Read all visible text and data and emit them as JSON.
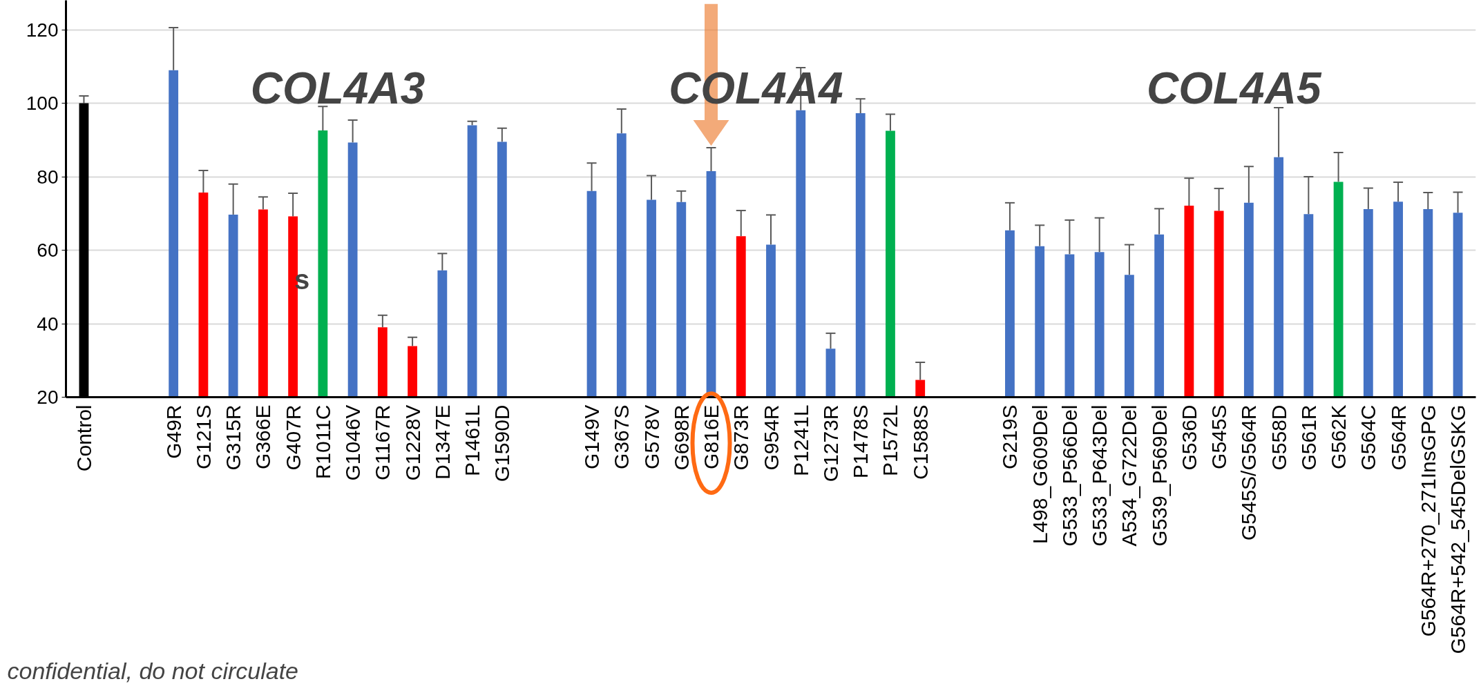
{
  "chart_data": {
    "type": "bar",
    "categories": [
      "Control",
      null,
      null,
      "G49R",
      "G121S",
      "G315R",
      "G366E",
      "G407R",
      "R1011C",
      "G1046V",
      "G1167R",
      "G1228V",
      "D1347E",
      "P1461L",
      "G1590D",
      null,
      null,
      "G149V",
      "G367S",
      "G578V",
      "G698R",
      "G816E",
      "G873R",
      "G954R",
      "P1241L",
      "G1273R",
      "P1478S",
      "P1572L",
      "C1588S",
      null,
      null,
      "G219S",
      "L498_G609Del",
      "G533_P566Del",
      "G533_P643Del",
      "A534_G722Del",
      "G539_P569Del",
      "G536D",
      "G545S",
      "G545S/G564R",
      "G558D",
      "G561R",
      "G562K",
      "G564C",
      "G564R",
      "G564R+270_271InsGPG",
      "G564R+542_545DelGSKG"
    ],
    "values": [
      100,
      null,
      null,
      109,
      75.7,
      69.7,
      71.1,
      69.2,
      92.6,
      89.3,
      39.0,
      33.9,
      54.5,
      94.0,
      89.5,
      null,
      null,
      76.1,
      91.8,
      73.7,
      73.1,
      81.5,
      63.8,
      61.5,
      98.1,
      33.2,
      97.3,
      92.5,
      24.7,
      null,
      null,
      65.4,
      61.1,
      58.9,
      59.5,
      53.3,
      64.3,
      72.1,
      70.7,
      72.9,
      85.3,
      69.8,
      78.6,
      71.2,
      73.2,
      71.2,
      70.2
    ],
    "errors": [
      [
        100,
        102
      ],
      null,
      null,
      [
        109,
        120.6
      ],
      [
        75.7,
        81.7
      ],
      [
        69.7,
        78
      ],
      [
        71.1,
        74.5
      ],
      [
        69.2,
        75.5
      ],
      [
        92.6,
        99.1
      ],
      [
        89.3,
        95.4
      ],
      [
        39.0,
        42.3
      ],
      [
        33.9,
        36.3
      ],
      [
        54.5,
        59.1
      ],
      [
        94.0,
        95.1
      ],
      [
        89.5,
        93.2
      ],
      null,
      null,
      [
        76.1,
        83.7
      ],
      [
        91.8,
        98.4
      ],
      [
        73.7,
        80.3
      ],
      [
        73.1,
        76.1
      ],
      [
        81.5,
        87.9
      ],
      [
        63.8,
        70.8
      ],
      [
        61.5,
        69.6
      ],
      [
        98.1,
        109.7
      ],
      [
        33.2,
        37.4
      ],
      [
        97.3,
        101.2
      ],
      [
        92.5,
        97.0
      ],
      [
        24.7,
        29.5
      ],
      null,
      null,
      [
        65.4,
        72.9
      ],
      [
        61.1,
        66.8
      ],
      [
        58.9,
        68.2
      ],
      [
        59.5,
        68.8
      ],
      [
        53.3,
        61.5
      ],
      [
        64.3,
        71.3
      ],
      [
        72.1,
        79.6
      ],
      [
        70.7,
        76.8
      ],
      [
        72.9,
        82.8
      ],
      [
        85.3,
        98.8
      ],
      [
        69.8,
        80.0
      ],
      [
        78.6,
        86.6
      ],
      [
        71.2,
        76.9
      ],
      [
        73.2,
        78.5
      ],
      [
        71.2,
        75.7
      ],
      [
        70.2,
        75.8
      ]
    ],
    "colors": [
      "#000000",
      null,
      null,
      "#4472c4",
      "#ff0000",
      "#4472c4",
      "#ff0000",
      "#ff0000",
      "#00b050",
      "#4472c4",
      "#ff0000",
      "#ff0000",
      "#4472c4",
      "#4472c4",
      "#4472c4",
      null,
      null,
      "#4472c4",
      "#4472c4",
      "#4472c4",
      "#4472c4",
      "#4472c4",
      "#ff0000",
      "#4472c4",
      "#4472c4",
      "#4472c4",
      "#4472c4",
      "#00b050",
      "#ff0000",
      null,
      null,
      "#4472c4",
      "#4472c4",
      "#4472c4",
      "#4472c4",
      "#4472c4",
      "#4472c4",
      "#ff0000",
      "#ff0000",
      "#4472c4",
      "#4472c4",
      "#4472c4",
      "#00b050",
      "#4472c4",
      "#4472c4",
      "#4472c4",
      "#4472c4"
    ],
    "ylim": [
      20,
      128
    ],
    "yticks": [
      20,
      40,
      60,
      80,
      100,
      120
    ],
    "grid": "y",
    "annotations": [
      "COL4A3",
      "COL4A4",
      "COL4A5",
      "s",
      "confidential, do not circulate"
    ]
  }
}
